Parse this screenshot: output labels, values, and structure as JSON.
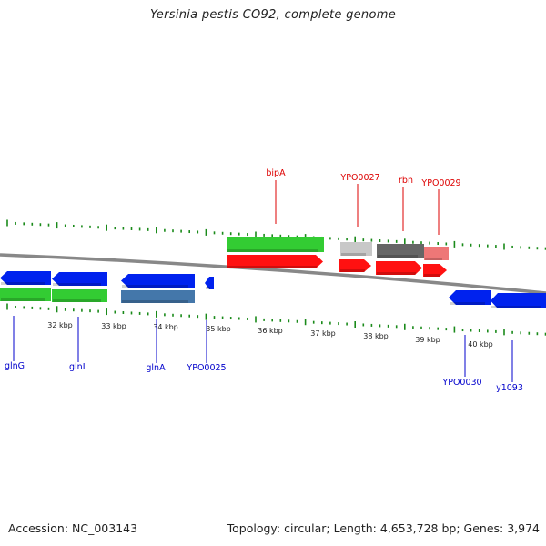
{
  "title": "Yersinia pestis CO92, complete genome",
  "footer": {
    "accession": "Accession: NC_003143",
    "summary": "Topology: circular; Length: 4,653,728 bp; Genes: 3,974"
  },
  "colors": {
    "background": "#ffffff",
    "backbone": "#888888",
    "tick": "#1a8a1a",
    "forward_label": "#dd0000",
    "reverse_label": "#0000cc",
    "cds_green": "#33cc33",
    "cds_red": "#ff1111",
    "cds_blue": "#0022ee",
    "cds_steel": "#4477aa",
    "cds_grey_light": "#c8c8c8",
    "cds_grey_dark": "#666666",
    "cds_pink": "#ee7777"
  },
  "kbp_labels": [
    "32 kbp",
    "33 kbp",
    "34 kbp",
    "35 kbp",
    "36 kbp",
    "37 kbp",
    "38 kbp",
    "39 kbp",
    "40 kbp"
  ],
  "forward_gene_labels": [
    "bipA",
    "YPO0027",
    "rbn",
    "YPO0029"
  ],
  "reverse_gene_labels": [
    "glnG",
    "glnL",
    "glnA",
    "YPO0025",
    "YPO0030",
    "y1093"
  ]
}
